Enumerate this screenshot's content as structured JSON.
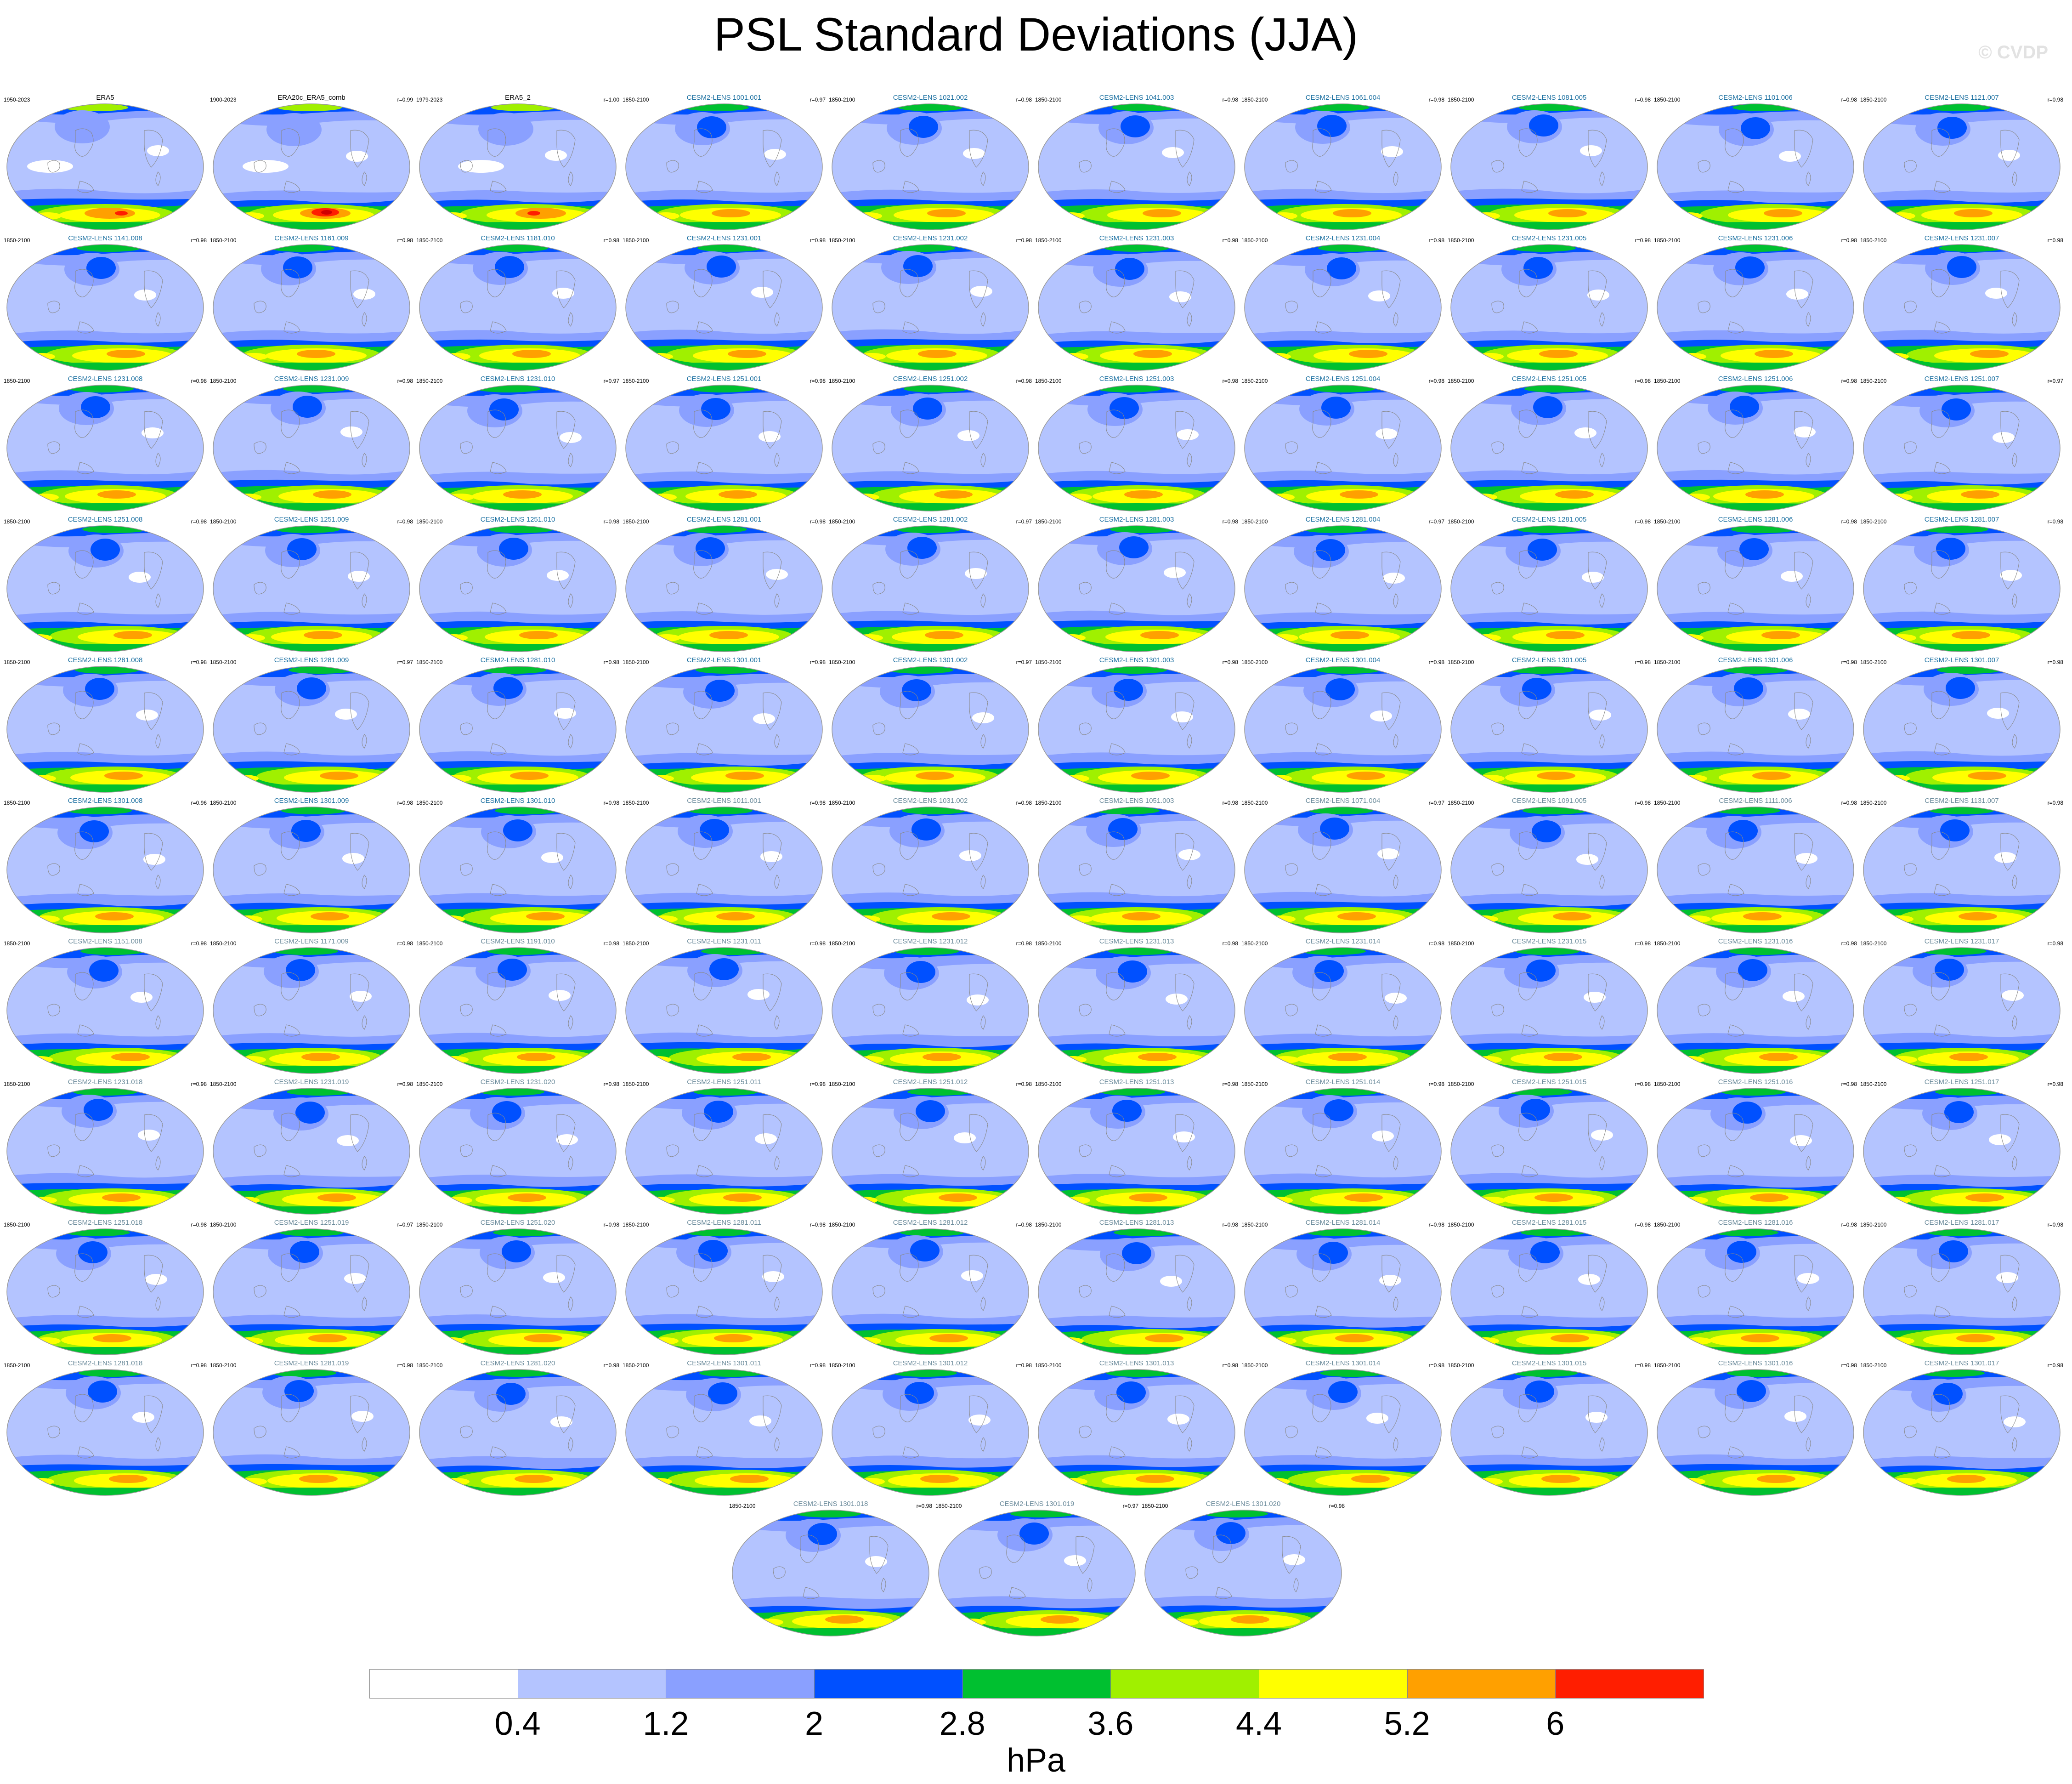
{
  "title": "PSL Standard Deviations (JJA)",
  "watermark": "© CVDP",
  "colorbar": {
    "units": "hPa",
    "tick_labels": [
      "0.4",
      "1.2",
      "2",
      "2.8",
      "3.6",
      "4.4",
      "5.2",
      "6"
    ],
    "colors": [
      "#ffffff",
      "#b4c4ff",
      "#8aa0ff",
      "#0050ff",
      "#00c030",
      "#a0f000",
      "#ffff00",
      "#ffa000",
      "#ff1e00"
    ]
  },
  "chart_data": {
    "type": "heatmap",
    "title": "PSL Standard Deviations (JJA)",
    "units": "hPa",
    "levels": [
      0.4,
      1.2,
      2,
      2.8,
      3.6,
      4.4,
      5.2,
      6
    ],
    "panels": [
      {
        "title": "ERA5",
        "years": "1950-2023",
        "r": "",
        "title_color": "#000000"
      },
      {
        "title": "ERA20c_ERA5_comb",
        "years": "1900-2023",
        "r": "r=0.99",
        "title_color": "#000000"
      },
      {
        "title": "ERA5_2",
        "years": "1979-2023",
        "r": "r=1.00",
        "title_color": "#000000"
      },
      {
        "title": "CESM2-LENS 1001.001",
        "years": "1850-2100",
        "r": "r=0.97",
        "title_color": "#1a6fa0"
      },
      {
        "title": "CESM2-LENS 1021.002",
        "years": "1850-2100",
        "r": "r=0.98",
        "title_color": "#1a6fa0"
      },
      {
        "title": "CESM2-LENS 1041.003",
        "years": "1850-2100",
        "r": "r=0.98",
        "title_color": "#1a6fa0"
      },
      {
        "title": "CESM2-LENS 1061.004",
        "years": "1850-2100",
        "r": "r=0.98",
        "title_color": "#1a6fa0"
      },
      {
        "title": "CESM2-LENS 1081.005",
        "years": "1850-2100",
        "r": "r=0.98",
        "title_color": "#1a6fa0"
      },
      {
        "title": "CESM2-LENS 1101.006",
        "years": "1850-2100",
        "r": "r=0.98",
        "title_color": "#1a6fa0"
      },
      {
        "title": "CESM2-LENS 1121.007",
        "years": "1850-2100",
        "r": "r=0.98",
        "title_color": "#1a6fa0"
      },
      {
        "title": "CESM2-LENS 1141.008",
        "years": "1850-2100",
        "r": "r=0.98",
        "title_color": "#1a6fa0"
      },
      {
        "title": "CESM2-LENS 1161.009",
        "years": "1850-2100",
        "r": "r=0.98",
        "title_color": "#1a6fa0"
      },
      {
        "title": "CESM2-LENS 1181.010",
        "years": "1850-2100",
        "r": "r=0.98",
        "title_color": "#1a6fa0"
      },
      {
        "title": "CESM2-LENS 1231.001",
        "years": "1850-2100",
        "r": "r=0.98",
        "title_color": "#1a6fa0"
      },
      {
        "title": "CESM2-LENS 1231.002",
        "years": "1850-2100",
        "r": "r=0.98",
        "title_color": "#1a6fa0"
      },
      {
        "title": "CESM2-LENS 1231.003",
        "years": "1850-2100",
        "r": "r=0.98",
        "title_color": "#1a6fa0"
      },
      {
        "title": "CESM2-LENS 1231.004",
        "years": "1850-2100",
        "r": "r=0.98",
        "title_color": "#1a6fa0"
      },
      {
        "title": "CESM2-LENS 1231.005",
        "years": "1850-2100",
        "r": "r=0.98",
        "title_color": "#1a6fa0"
      },
      {
        "title": "CESM2-LENS 1231.006",
        "years": "1850-2100",
        "r": "r=0.98",
        "title_color": "#1a6fa0"
      },
      {
        "title": "CESM2-LENS 1231.007",
        "years": "1850-2100",
        "r": "r=0.98",
        "title_color": "#1a6fa0"
      },
      {
        "title": "CESM2-LENS 1231.008",
        "years": "1850-2100",
        "r": "r=0.98",
        "title_color": "#1a6fa0"
      },
      {
        "title": "CESM2-LENS 1231.009",
        "years": "1850-2100",
        "r": "r=0.98",
        "title_color": "#1a6fa0"
      },
      {
        "title": "CESM2-LENS 1231.010",
        "years": "1850-2100",
        "r": "r=0.97",
        "title_color": "#1a6fa0"
      },
      {
        "title": "CESM2-LENS 1251.001",
        "years": "1850-2100",
        "r": "r=0.98",
        "title_color": "#1a6fa0"
      },
      {
        "title": "CESM2-LENS 1251.002",
        "years": "1850-2100",
        "r": "r=0.98",
        "title_color": "#1a6fa0"
      },
      {
        "title": "CESM2-LENS 1251.003",
        "years": "1850-2100",
        "r": "r=0.98",
        "title_color": "#1a6fa0"
      },
      {
        "title": "CESM2-LENS 1251.004",
        "years": "1850-2100",
        "r": "r=0.98",
        "title_color": "#1a6fa0"
      },
      {
        "title": "CESM2-LENS 1251.005",
        "years": "1850-2100",
        "r": "r=0.98",
        "title_color": "#1a6fa0"
      },
      {
        "title": "CESM2-LENS 1251.006",
        "years": "1850-2100",
        "r": "r=0.98",
        "title_color": "#1a6fa0"
      },
      {
        "title": "CESM2-LENS 1251.007",
        "years": "1850-2100",
        "r": "r=0.97",
        "title_color": "#1a6fa0"
      },
      {
        "title": "CESM2-LENS 1251.008",
        "years": "1850-2100",
        "r": "r=0.98",
        "title_color": "#1a6fa0"
      },
      {
        "title": "CESM2-LENS 1251.009",
        "years": "1850-2100",
        "r": "r=0.98",
        "title_color": "#1a6fa0"
      },
      {
        "title": "CESM2-LENS 1251.010",
        "years": "1850-2100",
        "r": "r=0.98",
        "title_color": "#1a6fa0"
      },
      {
        "title": "CESM2-LENS 1281.001",
        "years": "1850-2100",
        "r": "r=0.98",
        "title_color": "#1a6fa0"
      },
      {
        "title": "CESM2-LENS 1281.002",
        "years": "1850-2100",
        "r": "r=0.97",
        "title_color": "#1a6fa0"
      },
      {
        "title": "CESM2-LENS 1281.003",
        "years": "1850-2100",
        "r": "r=0.98",
        "title_color": "#1a6fa0"
      },
      {
        "title": "CESM2-LENS 1281.004",
        "years": "1850-2100",
        "r": "r=0.97",
        "title_color": "#1a6fa0"
      },
      {
        "title": "CESM2-LENS 1281.005",
        "years": "1850-2100",
        "r": "r=0.98",
        "title_color": "#1a6fa0"
      },
      {
        "title": "CESM2-LENS 1281.006",
        "years": "1850-2100",
        "r": "r=0.98",
        "title_color": "#1a6fa0"
      },
      {
        "title": "CESM2-LENS 1281.007",
        "years": "1850-2100",
        "r": "r=0.98",
        "title_color": "#1a6fa0"
      },
      {
        "title": "CESM2-LENS 1281.008",
        "years": "1850-2100",
        "r": "r=0.98",
        "title_color": "#1a6fa0"
      },
      {
        "title": "CESM2-LENS 1281.009",
        "years": "1850-2100",
        "r": "r=0.97",
        "title_color": "#1a6fa0"
      },
      {
        "title": "CESM2-LENS 1281.010",
        "years": "1850-2100",
        "r": "r=0.98",
        "title_color": "#1a6fa0"
      },
      {
        "title": "CESM2-LENS 1301.001",
        "years": "1850-2100",
        "r": "r=0.98",
        "title_color": "#1a6fa0"
      },
      {
        "title": "CESM2-LENS 1301.002",
        "years": "1850-2100",
        "r": "r=0.97",
        "title_color": "#1a6fa0"
      },
      {
        "title": "CESM2-LENS 1301.003",
        "years": "1850-2100",
        "r": "r=0.98",
        "title_color": "#1a6fa0"
      },
      {
        "title": "CESM2-LENS 1301.004",
        "years": "1850-2100",
        "r": "r=0.98",
        "title_color": "#1a6fa0"
      },
      {
        "title": "CESM2-LENS 1301.005",
        "years": "1850-2100",
        "r": "r=0.98",
        "title_color": "#1a6fa0"
      },
      {
        "title": "CESM2-LENS 1301.006",
        "years": "1850-2100",
        "r": "r=0.98",
        "title_color": "#1a6fa0"
      },
      {
        "title": "CESM2-LENS 1301.007",
        "years": "1850-2100",
        "r": "r=0.98",
        "title_color": "#1a6fa0"
      },
      {
        "title": "CESM2-LENS 1301.008",
        "years": "1850-2100",
        "r": "r=0.96",
        "title_color": "#1a6fa0"
      },
      {
        "title": "CESM2-LENS 1301.009",
        "years": "1850-2100",
        "r": "r=0.98",
        "title_color": "#1a6fa0"
      },
      {
        "title": "CESM2-LENS 1301.010",
        "years": "1850-2100",
        "r": "r=0.98",
        "title_color": "#1a6fa0"
      },
      {
        "title": "CESM2-LENS 1011.001",
        "years": "1850-2100",
        "r": "r=0.98",
        "title_color": "#6a8a9a"
      },
      {
        "title": "CESM2-LENS 1031.002",
        "years": "1850-2100",
        "r": "r=0.98",
        "title_color": "#6a8a9a"
      },
      {
        "title": "CESM2-LENS 1051.003",
        "years": "1850-2100",
        "r": "r=0.98",
        "title_color": "#6a8a9a"
      },
      {
        "title": "CESM2-LENS 1071.004",
        "years": "1850-2100",
        "r": "r=0.97",
        "title_color": "#6a8a9a"
      },
      {
        "title": "CESM2-LENS 1091.005",
        "years": "1850-2100",
        "r": "r=0.98",
        "title_color": "#6a8a9a"
      },
      {
        "title": "CESM2-LENS 1111.006",
        "years": "1850-2100",
        "r": "r=0.98",
        "title_color": "#6a8a9a"
      },
      {
        "title": "CESM2-LENS 1131.007",
        "years": "1850-2100",
        "r": "r=0.98",
        "title_color": "#6a8a9a"
      },
      {
        "title": "CESM2-LENS 1151.008",
        "years": "1850-2100",
        "r": "r=0.98",
        "title_color": "#6a8a9a"
      },
      {
        "title": "CESM2-LENS 1171.009",
        "years": "1850-2100",
        "r": "r=0.98",
        "title_color": "#6a8a9a"
      },
      {
        "title": "CESM2-LENS 1191.010",
        "years": "1850-2100",
        "r": "r=0.98",
        "title_color": "#6a8a9a"
      },
      {
        "title": "CESM2-LENS 1231.011",
        "years": "1850-2100",
        "r": "r=0.98",
        "title_color": "#6a8a9a"
      },
      {
        "title": "CESM2-LENS 1231.012",
        "years": "1850-2100",
        "r": "r=0.98",
        "title_color": "#6a8a9a"
      },
      {
        "title": "CESM2-LENS 1231.013",
        "years": "1850-2100",
        "r": "r=0.98",
        "title_color": "#6a8a9a"
      },
      {
        "title": "CESM2-LENS 1231.014",
        "years": "1850-2100",
        "r": "r=0.98",
        "title_color": "#6a8a9a"
      },
      {
        "title": "CESM2-LENS 1231.015",
        "years": "1850-2100",
        "r": "r=0.98",
        "title_color": "#6a8a9a"
      },
      {
        "title": "CESM2-LENS 1231.016",
        "years": "1850-2100",
        "r": "r=0.98",
        "title_color": "#6a8a9a"
      },
      {
        "title": "CESM2-LENS 1231.017",
        "years": "1850-2100",
        "r": "r=0.98",
        "title_color": "#6a8a9a"
      },
      {
        "title": "CESM2-LENS 1231.018",
        "years": "1850-2100",
        "r": "r=0.98",
        "title_color": "#6a8a9a"
      },
      {
        "title": "CESM2-LENS 1231.019",
        "years": "1850-2100",
        "r": "r=0.98",
        "title_color": "#6a8a9a"
      },
      {
        "title": "CESM2-LENS 1231.020",
        "years": "1850-2100",
        "r": "r=0.98",
        "title_color": "#6a8a9a"
      },
      {
        "title": "CESM2-LENS 1251.011",
        "years": "1850-2100",
        "r": "r=0.98",
        "title_color": "#6a8a9a"
      },
      {
        "title": "CESM2-LENS 1251.012",
        "years": "1850-2100",
        "r": "r=0.98",
        "title_color": "#6a8a9a"
      },
      {
        "title": "CESM2-LENS 1251.013",
        "years": "1850-2100",
        "r": "r=0.98",
        "title_color": "#6a8a9a"
      },
      {
        "title": "CESM2-LENS 1251.014",
        "years": "1850-2100",
        "r": "r=0.98",
        "title_color": "#6a8a9a"
      },
      {
        "title": "CESM2-LENS 1251.015",
        "years": "1850-2100",
        "r": "r=0.98",
        "title_color": "#6a8a9a"
      },
      {
        "title": "CESM2-LENS 1251.016",
        "years": "1850-2100",
        "r": "r=0.98",
        "title_color": "#6a8a9a"
      },
      {
        "title": "CESM2-LENS 1251.017",
        "years": "1850-2100",
        "r": "r=0.98",
        "title_color": "#6a8a9a"
      },
      {
        "title": "CESM2-LENS 1251.018",
        "years": "1850-2100",
        "r": "r=0.98",
        "title_color": "#6a8a9a"
      },
      {
        "title": "CESM2-LENS 1251.019",
        "years": "1850-2100",
        "r": "r=0.97",
        "title_color": "#6a8a9a"
      },
      {
        "title": "CESM2-LENS 1251.020",
        "years": "1850-2100",
        "r": "r=0.98",
        "title_color": "#6a8a9a"
      },
      {
        "title": "CESM2-LENS 1281.011",
        "years": "1850-2100",
        "r": "r=0.98",
        "title_color": "#6a8a9a"
      },
      {
        "title": "CESM2-LENS 1281.012",
        "years": "1850-2100",
        "r": "r=0.98",
        "title_color": "#6a8a9a"
      },
      {
        "title": "CESM2-LENS 1281.013",
        "years": "1850-2100",
        "r": "r=0.98",
        "title_color": "#6a8a9a"
      },
      {
        "title": "CESM2-LENS 1281.014",
        "years": "1850-2100",
        "r": "r=0.98",
        "title_color": "#6a8a9a"
      },
      {
        "title": "CESM2-LENS 1281.015",
        "years": "1850-2100",
        "r": "r=0.98",
        "title_color": "#6a8a9a"
      },
      {
        "title": "CESM2-LENS 1281.016",
        "years": "1850-2100",
        "r": "r=0.98",
        "title_color": "#6a8a9a"
      },
      {
        "title": "CESM2-LENS 1281.017",
        "years": "1850-2100",
        "r": "r=0.98",
        "title_color": "#6a8a9a"
      },
      {
        "title": "CESM2-LENS 1281.018",
        "years": "1850-2100",
        "r": "r=0.98",
        "title_color": "#6a8a9a"
      },
      {
        "title": "CESM2-LENS 1281.019",
        "years": "1850-2100",
        "r": "r=0.98",
        "title_color": "#6a8a9a"
      },
      {
        "title": "CESM2-LENS 1281.020",
        "years": "1850-2100",
        "r": "r=0.98",
        "title_color": "#6a8a9a"
      },
      {
        "title": "CESM2-LENS 1301.011",
        "years": "1850-2100",
        "r": "r=0.98",
        "title_color": "#6a8a9a"
      },
      {
        "title": "CESM2-LENS 1301.012",
        "years": "1850-2100",
        "r": "r=0.98",
        "title_color": "#6a8a9a"
      },
      {
        "title": "CESM2-LENS 1301.013",
        "years": "1850-2100",
        "r": "r=0.98",
        "title_color": "#6a8a9a"
      },
      {
        "title": "CESM2-LENS 1301.014",
        "years": "1850-2100",
        "r": "r=0.98",
        "title_color": "#6a8a9a"
      },
      {
        "title": "CESM2-LENS 1301.015",
        "years": "1850-2100",
        "r": "r=0.98",
        "title_color": "#6a8a9a"
      },
      {
        "title": "CESM2-LENS 1301.016",
        "years": "1850-2100",
        "r": "r=0.98",
        "title_color": "#6a8a9a"
      },
      {
        "title": "CESM2-LENS 1301.017",
        "years": "1850-2100",
        "r": "r=0.98",
        "title_color": "#6a8a9a"
      },
      {
        "title": "CESM2-LENS 1301.018",
        "years": "1850-2100",
        "r": "r=0.98",
        "title_color": "#6a8a9a"
      },
      {
        "title": "CESM2-LENS 1301.019",
        "years": "1850-2100",
        "r": "r=0.97",
        "title_color": "#6a8a9a"
      },
      {
        "title": "CESM2-LENS 1301.020",
        "years": "1850-2100",
        "r": "r=0.98",
        "title_color": "#6a8a9a"
      }
    ]
  }
}
